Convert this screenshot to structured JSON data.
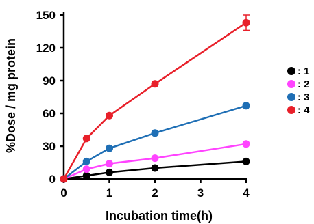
{
  "chart_data": {
    "type": "line",
    "title": "",
    "xlabel": "Incubation time(h)",
    "ylabel": "%Dose / mg protein",
    "xlim": [
      0,
      4
    ],
    "ylim": [
      0,
      150
    ],
    "xticks": [
      0,
      1,
      2,
      3,
      4
    ],
    "yticks": [
      0,
      30,
      60,
      90,
      120,
      150
    ],
    "x": [
      0,
      0.5,
      1,
      2,
      4
    ],
    "grid": false,
    "legend_position": "right",
    "series": [
      {
        "name": ": 1",
        "color": "#000000",
        "values": [
          0,
          3,
          6,
          10,
          16
        ]
      },
      {
        "name": ": 2",
        "color": "#ff44ff",
        "values": [
          0,
          9,
          14,
          19,
          32
        ]
      },
      {
        "name": ": 3",
        "color": "#1f6fb5",
        "values": [
          0,
          16,
          28,
          42,
          67
        ]
      },
      {
        "name": ": 4",
        "color": "#e8202a",
        "values": [
          0,
          37,
          58,
          87,
          143
        ],
        "error_last": 7
      }
    ]
  }
}
